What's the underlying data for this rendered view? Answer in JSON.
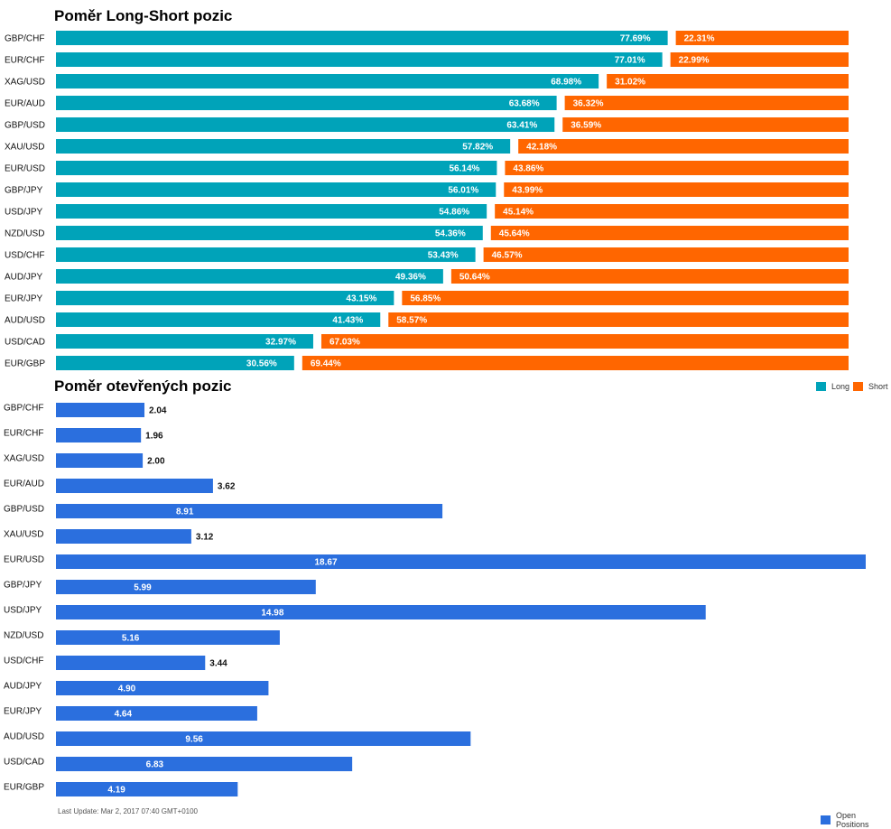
{
  "titles": {
    "long_short": "Poměr Long-Short pozic",
    "open_positions": "Poměr otevřených pozic"
  },
  "legend": {
    "long": "Long",
    "short": "Short",
    "open": "Open Positions"
  },
  "footer": "Last Update: Mar 2, 2017 07:40 GMT+0100",
  "colors": {
    "long": "#00A3B9",
    "short": "#FF6600",
    "open": "#2B6FDE"
  },
  "chart_data": [
    {
      "type": "bar",
      "stacked": true,
      "orientation": "horizontal",
      "title": "Poměr Long-Short pozic",
      "categories": [
        "GBP/CHF",
        "EUR/CHF",
        "XAG/USD",
        "EUR/AUD",
        "GBP/USD",
        "XAU/USD",
        "EUR/USD",
        "GBP/JPY",
        "USD/JPY",
        "NZD/USD",
        "USD/CHF",
        "AUD/JPY",
        "EUR/JPY",
        "AUD/USD",
        "USD/CAD",
        "EUR/GBP"
      ],
      "series": [
        {
          "name": "Long",
          "values": [
            77.69,
            77.01,
            68.98,
            63.68,
            63.41,
            57.82,
            56.14,
            56.01,
            54.86,
            54.36,
            53.43,
            49.36,
            43.15,
            41.43,
            32.97,
            30.56
          ],
          "labels": [
            "77.69%",
            "77.01%",
            "68.98%",
            "63.68%",
            "63.41%",
            "57.82%",
            "56.14%",
            "56.01%",
            "54.86%",
            "54.36%",
            "53.43%",
            "49.36%",
            "43.15%",
            "41.43%",
            "32.97%",
            "30.56%"
          ]
        },
        {
          "name": "Short",
          "values": [
            22.31,
            22.99,
            31.02,
            36.32,
            36.59,
            42.18,
            43.86,
            43.99,
            45.14,
            45.64,
            46.57,
            50.64,
            56.85,
            58.57,
            67.03,
            69.44
          ],
          "labels": [
            "22.31%",
            "22.99%",
            "31.02%",
            "36.32%",
            "36.59%",
            "42.18%",
            "43.86%",
            "43.99%",
            "45.14%",
            "45.64%",
            "46.57%",
            "50.64%",
            "56.85%",
            "58.57%",
            "67.03%",
            "69.44%"
          ]
        }
      ],
      "legend": "right"
    },
    {
      "type": "bar",
      "orientation": "horizontal",
      "title": "Poměr otevřených pozic",
      "categories": [
        "GBP/CHF",
        "EUR/CHF",
        "XAG/USD",
        "EUR/AUD",
        "GBP/USD",
        "XAU/USD",
        "EUR/USD",
        "GBP/JPY",
        "USD/JPY",
        "NZD/USD",
        "USD/CHF",
        "AUD/JPY",
        "EUR/JPY",
        "AUD/USD",
        "USD/CAD",
        "EUR/GBP"
      ],
      "series": [
        {
          "name": "Open Positions",
          "values": [
            2.04,
            1.96,
            2.0,
            3.62,
            8.91,
            3.12,
            18.67,
            5.99,
            14.98,
            5.16,
            3.44,
            4.9,
            4.64,
            9.56,
            6.83,
            4.19
          ],
          "labels": [
            "2.04",
            "1.96",
            "2.00",
            "3.62",
            "8.91",
            "3.12",
            "18.67",
            "5.99",
            "14.98",
            "5.16",
            "3.44",
            "4.90",
            "4.64",
            "9.56",
            "6.83",
            "4.19"
          ]
        }
      ],
      "legend": "bottom-right"
    }
  ]
}
